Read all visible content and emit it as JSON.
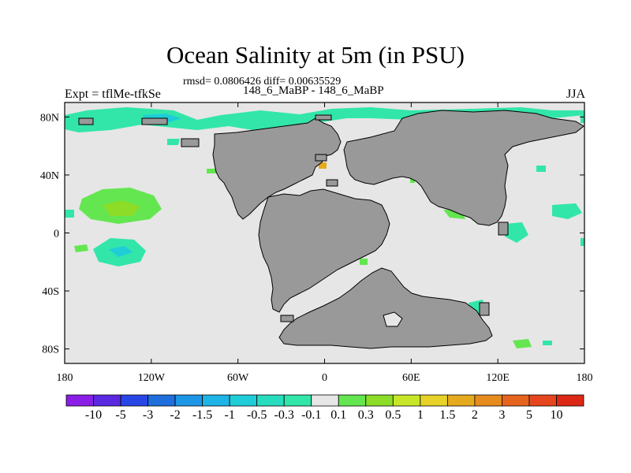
{
  "title": "Ocean Salinity at 5m (in PSU)",
  "stats": "rmsd= 0.0806426 diff= 0.00635529",
  "experiment": "Expt = tflMe-tfkSe",
  "cases": "148_6_MaBP - 148_6_MaBP",
  "season": "JJA",
  "axes": {
    "x_ticks": [
      "180",
      "120W",
      "60W",
      "0",
      "60E",
      "120E",
      "180"
    ],
    "y_ticks": [
      "80N",
      "40N",
      "0",
      "40S",
      "80S"
    ]
  },
  "colors": {
    "ocean_background": "#e6e6e6",
    "land": "#999999",
    "coastline": "#000000"
  },
  "colorbar": {
    "labels": [
      "-10",
      "-5",
      "-3",
      "-2",
      "-1.5",
      "-1",
      "-0.5",
      "-0.3",
      "-0.1",
      "0.1",
      "0.3",
      "0.5",
      "1",
      "1.5",
      "2",
      "3",
      "5",
      "10"
    ],
    "colors": [
      "#8a1ee6",
      "#5a28e0",
      "#2846e6",
      "#1e6edc",
      "#1e96e6",
      "#1eb4e6",
      "#1ecdd7",
      "#28dcbe",
      "#32e6aa",
      "#e6e6e6",
      "#64e650",
      "#8cdc28",
      "#c8e628",
      "#e6d228",
      "#e6aa1e",
      "#e68c1e",
      "#e6641e",
      "#e6461e",
      "#dc2814"
    ]
  }
}
